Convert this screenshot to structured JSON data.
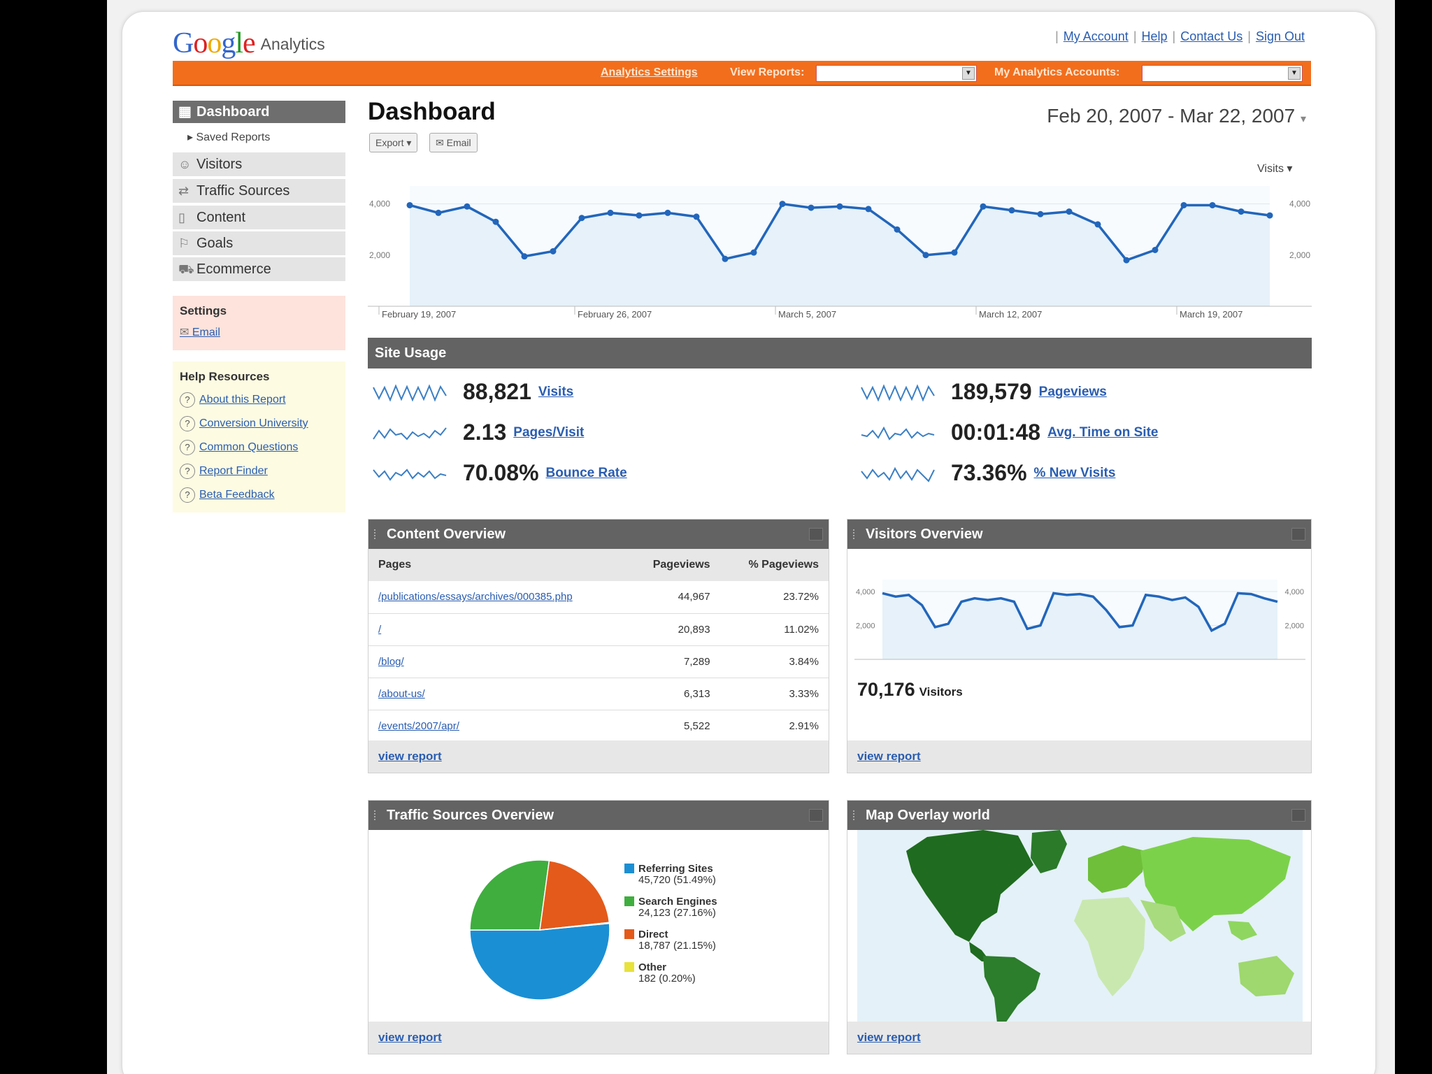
{
  "header": {
    "logo_word": "Google",
    "logo_sub": "Analytics",
    "top_links": [
      "My Account",
      "Help",
      "Contact Us",
      "Sign Out"
    ],
    "analytics_settings": "Analytics Settings",
    "view_reports_label": "View Reports:",
    "view_reports_value": "",
    "my_accounts_label": "My Analytics Accounts:",
    "my_accounts_value": ""
  },
  "sidebar": {
    "dashboard": "Dashboard",
    "saved_reports": "▸ Saved Reports",
    "items": [
      {
        "label": "Visitors",
        "icon": "person-icon"
      },
      {
        "label": "Traffic Sources",
        "icon": "traffic-icon"
      },
      {
        "label": "Content",
        "icon": "page-icon"
      },
      {
        "label": "Goals",
        "icon": "flag-icon"
      },
      {
        "label": "Ecommerce",
        "icon": "cart-icon"
      }
    ],
    "settings_title": "Settings",
    "settings_email": "Email",
    "help_title": "Help Resources",
    "help_links": [
      "About this Report",
      "Conversion University",
      "Common Questions",
      "Report Finder",
      "Beta Feedback"
    ]
  },
  "main": {
    "title": "Dashboard",
    "export_label": "Export ▾",
    "email_label": "Email",
    "date_range": "Feb 20, 2007 - Mar 22, 2007",
    "metric_selector": "Visits ▾"
  },
  "chart_data": [
    {
      "type": "area",
      "id": "main-visits",
      "series": [
        {
          "name": "Visits",
          "values": [
            3950,
            3650,
            3900,
            3300,
            1950,
            2150,
            3450,
            3650,
            3550,
            3650,
            3500,
            1850,
            2100,
            4000,
            3850,
            3900,
            3800,
            3000,
            2000,
            2100,
            3900,
            3750,
            3600,
            3700,
            3200,
            1800,
            2200,
            3950,
            3950,
            3700,
            3550
          ]
        }
      ],
      "y_ticks": [
        "4,000",
        "2,000"
      ],
      "x_labels": [
        "February 19, 2007",
        "February 26, 2007",
        "March 5, 2007",
        "March 12, 2007",
        "March 19, 2007"
      ],
      "ylim": [
        0,
        4700
      ],
      "color": "#2266bb",
      "fill": "#e6f1f9"
    },
    {
      "type": "area",
      "id": "visitors-overview",
      "series": [
        {
          "name": "Visitors",
          "values": [
            3900,
            3700,
            3800,
            3200,
            1900,
            2100,
            3400,
            3600,
            3500,
            3600,
            3400,
            1800,
            2000,
            3900,
            3800,
            3850,
            3700,
            2900,
            1900,
            2000,
            3800,
            3700,
            3500,
            3650,
            3100,
            1700,
            2100,
            3900,
            3850,
            3600,
            3400
          ]
        }
      ],
      "y_ticks": [
        "4,000",
        "2,000"
      ],
      "ylim": [
        0,
        4700
      ],
      "color": "#2266bb",
      "fill": "#e6f1f9"
    },
    {
      "type": "pie",
      "id": "traffic-sources",
      "slices": [
        {
          "label": "Referring Sites",
          "value": 45720,
          "text": "45,720 (51.49%)",
          "color": "#1b8fd3"
        },
        {
          "label": "Search Engines",
          "value": 24123,
          "text": "24,123 (27.16%)",
          "color": "#3fae3f"
        },
        {
          "label": "Direct",
          "value": 18787,
          "text": "18,787 (21.15%)",
          "color": "#e45a1a"
        },
        {
          "label": "Other",
          "value": 182,
          "text": "182 (0.20%)",
          "color": "#e8e23a"
        }
      ]
    }
  ],
  "site_usage": {
    "title": "Site Usage",
    "metrics": [
      {
        "value": "88,821",
        "label": "Visits"
      },
      {
        "value": "189,579",
        "label": "Pageviews"
      },
      {
        "value": "2.13",
        "label": "Pages/Visit"
      },
      {
        "value": "00:01:48",
        "label": "Avg. Time on Site"
      },
      {
        "value": "70.08%",
        "label": "Bounce Rate"
      },
      {
        "value": "73.36%",
        "label": "% New Visits"
      }
    ]
  },
  "content_overview": {
    "title": "Content Overview",
    "columns": [
      "Pages",
      "Pageviews",
      "% Pageviews"
    ],
    "rows": [
      [
        "/publications/essays/archives/000385.php",
        "44,967",
        "23.72%"
      ],
      [
        "/",
        "20,893",
        "11.02%"
      ],
      [
        "/blog/",
        "7,289",
        "3.84%"
      ],
      [
        "/about-us/",
        "6,313",
        "3.33%"
      ],
      [
        "/events/2007/apr/",
        "5,522",
        "2.91%"
      ]
    ],
    "view_report": "view report"
  },
  "visitors_overview": {
    "title": "Visitors Overview",
    "count": "70,176",
    "count_label": "Visitors",
    "view_report": "view report"
  },
  "traffic_overview": {
    "title": "Traffic Sources Overview",
    "view_report": "view report"
  },
  "map_overlay": {
    "title": "Map Overlay world",
    "view_report": "view report"
  }
}
